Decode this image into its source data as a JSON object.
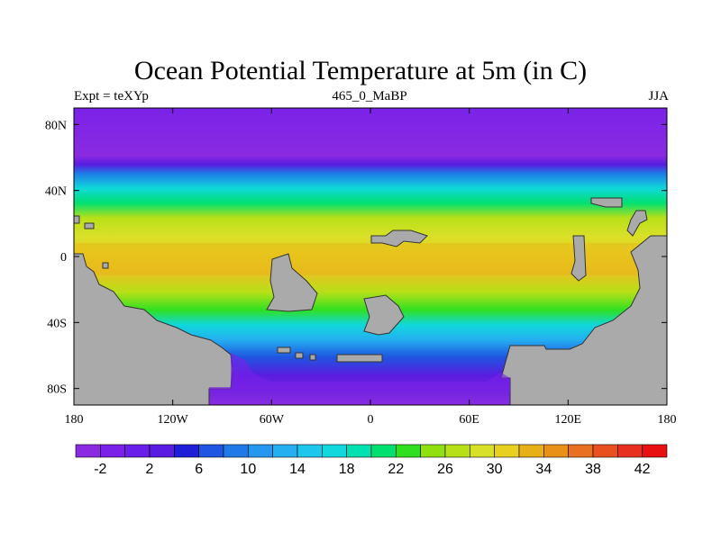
{
  "title": "Ocean Potential Temperature at 5m (in C)",
  "subtitle_left": "Expt = teXYp",
  "subtitle_center": "465_0_MaBP",
  "subtitle_right": "JJA",
  "axes": {
    "x_ticks": [
      "180",
      "120W",
      "60W",
      "0",
      "60E",
      "120E",
      "180"
    ],
    "y_ticks": [
      "80N",
      "40N",
      "0",
      "40S",
      "80S"
    ]
  },
  "colorbar": {
    "labels": [
      "-2",
      "2",
      "6",
      "10",
      "14",
      "18",
      "22",
      "26",
      "30",
      "34",
      "38",
      "42"
    ],
    "colors": [
      "#8a2be2",
      "#7a22e8",
      "#6a1fe8",
      "#5a1ce0",
      "#1f1fd8",
      "#1f55e0",
      "#1f7ae8",
      "#2597ee",
      "#24aff0",
      "#1cc6ec",
      "#10d8dc",
      "#00e0b0",
      "#00e070",
      "#30e020",
      "#90e010",
      "#b8e018",
      "#d8e028",
      "#e8d020",
      "#e8b018",
      "#e89018",
      "#e87020",
      "#e85020",
      "#e83020",
      "#e81010"
    ]
  },
  "colors": {
    "land": "#aaaaaa",
    "coast": "#333333"
  }
}
